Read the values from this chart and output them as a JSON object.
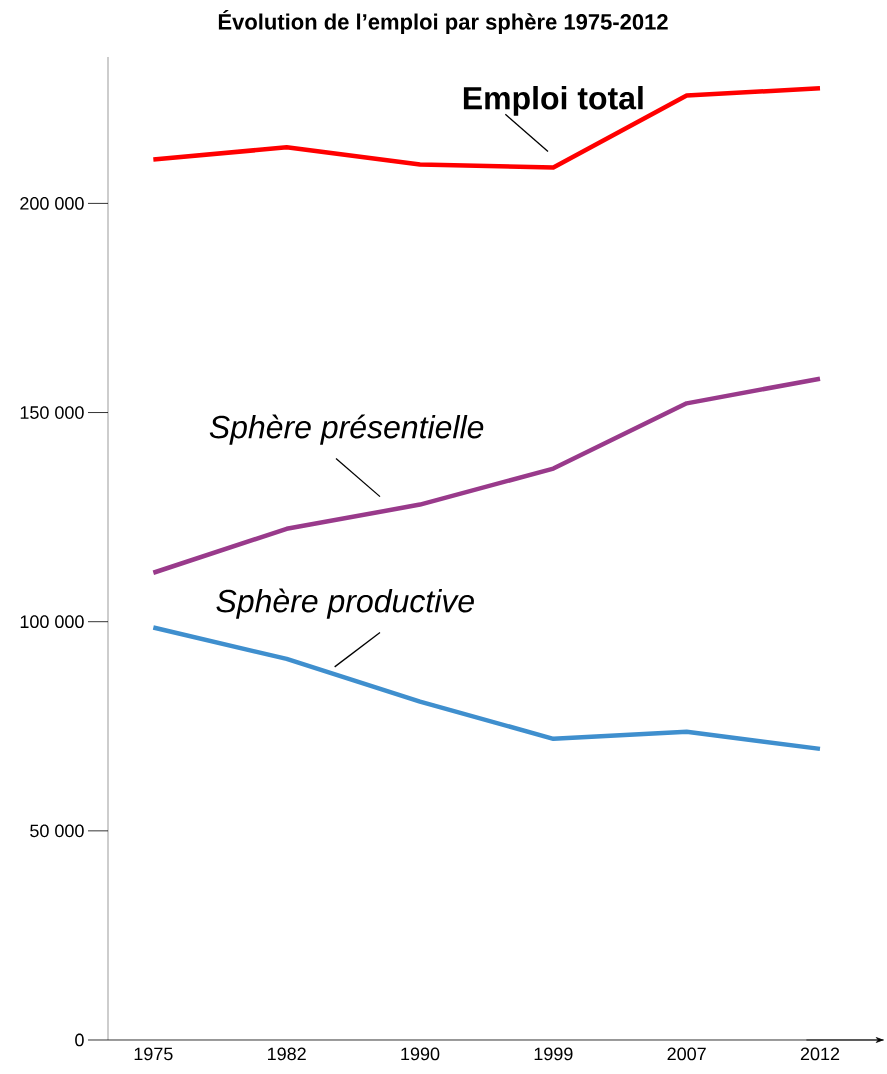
{
  "chart_data": {
    "type": "line",
    "title": "Évolution de l’emploi par sphère 1975-2012",
    "categories": [
      "1975",
      "1982",
      "1990",
      "1999",
      "2007",
      "2012"
    ],
    "series": [
      {
        "name": "Emploi total",
        "color": "#ff0000",
        "values": [
          210500,
          213400,
          209300,
          208600,
          225800,
          227500
        ]
      },
      {
        "name": "Sphère présentielle",
        "color": "#993a8b",
        "values": [
          111700,
          122200,
          128000,
          136600,
          152200,
          158100
        ]
      },
      {
        "name": "Sphère productive",
        "color": "#3f8fce",
        "values": [
          98600,
          91100,
          80900,
          72000,
          73700,
          69600
        ]
      }
    ],
    "ylim": [
      0,
      235000
    ],
    "yticks": [
      {
        "value": 0,
        "label": "0"
      },
      {
        "value": 50000,
        "label": "50 000"
      },
      {
        "value": 100000,
        "label": "100 000"
      },
      {
        "value": 150000,
        "label": "150 000"
      },
      {
        "value": 200000,
        "label": "200 000"
      }
    ],
    "grid": false,
    "legend": false,
    "marker": "none",
    "line_style": "solid"
  }
}
